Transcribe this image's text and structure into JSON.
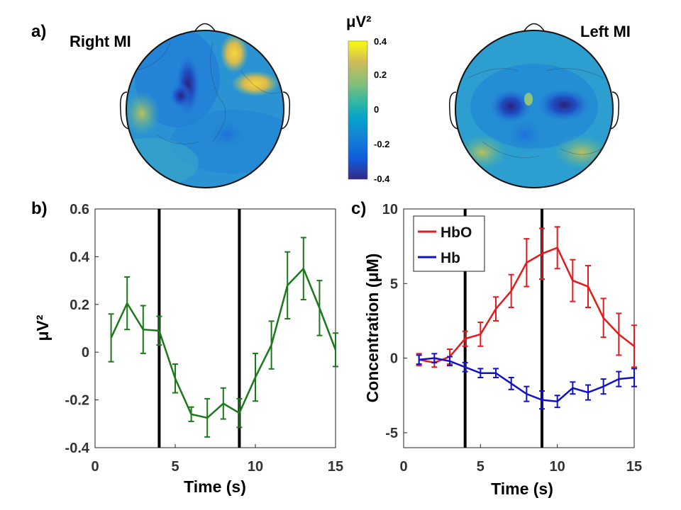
{
  "panel_labels": {
    "a": "a)",
    "b": "b)",
    "c": "c)"
  },
  "topomaps": {
    "right_title": "Right MI",
    "left_title": "Left MI"
  },
  "colorbar": {
    "unit_label": "μV²",
    "ticks": [
      "0.4",
      "0.2",
      "0",
      "-0.2",
      "-0.4"
    ],
    "range": [
      -0.4,
      0.4
    ],
    "colormap": "parula"
  },
  "chart_data": [
    {
      "type": "line",
      "panel": "b",
      "xlabel": "Time (s)",
      "ylabel": "μV²",
      "xlim": [
        0,
        15
      ],
      "ylim": [
        -0.4,
        0.6
      ],
      "xticks": [
        "0",
        "5",
        "10",
        "15"
      ],
      "yticks": [
        "0.6",
        "0.4",
        "0.2",
        "0",
        "-0.2",
        "-0.4"
      ],
      "vlines": [
        4,
        9
      ],
      "series": [
        {
          "color": "#1a7a1a",
          "x": [
            1,
            2,
            3,
            4,
            5,
            6,
            7,
            8,
            9,
            10,
            11,
            12,
            13,
            14,
            15
          ],
          "y": [
            0.06,
            0.205,
            0.095,
            0.09,
            -0.11,
            -0.26,
            -0.275,
            -0.215,
            -0.255,
            -0.105,
            0.03,
            0.28,
            0.35,
            0.185,
            0.01
          ],
          "err": [
            0.1,
            0.11,
            0.1,
            0.06,
            0.06,
            0.03,
            0.08,
            0.065,
            0.06,
            0.1,
            0.1,
            0.14,
            0.13,
            0.115,
            0.07
          ]
        }
      ]
    },
    {
      "type": "line",
      "panel": "c",
      "xlabel": "Time (s)",
      "ylabel": "Concentration (μM)",
      "xlim": [
        0,
        15
      ],
      "ylim": [
        -6,
        10
      ],
      "xticks": [
        "0",
        "5",
        "10",
        "15"
      ],
      "yticks": [
        "10",
        "5",
        "0",
        "-5"
      ],
      "vlines": [
        4,
        9
      ],
      "legend_position": "top-left",
      "series": [
        {
          "name": "HbO",
          "color": "#e41a1c",
          "x": [
            1,
            2,
            3,
            4,
            5,
            6,
            7,
            8,
            9,
            10,
            11,
            12,
            13,
            14,
            15
          ],
          "y": [
            -0.1,
            -0.3,
            0.1,
            1.3,
            1.6,
            3.3,
            4.5,
            6.4,
            7.0,
            7.4,
            5.2,
            4.8,
            2.7,
            1.6,
            0.8
          ],
          "err": [
            0.4,
            0.3,
            0.5,
            0.5,
            0.8,
            0.8,
            1.1,
            1.6,
            1.7,
            1.4,
            1.4,
            1.4,
            1.3,
            1.4,
            1.4
          ]
        },
        {
          "name": "Hb",
          "color": "#1111cc",
          "x": [
            1,
            2,
            3,
            4,
            5,
            6,
            7,
            8,
            9,
            10,
            11,
            12,
            13,
            14,
            15
          ],
          "y": [
            -0.1,
            0.0,
            -0.2,
            -0.6,
            -1.0,
            -1.0,
            -1.7,
            -2.4,
            -2.8,
            -2.9,
            -2.0,
            -2.3,
            -1.9,
            -1.4,
            -1.3
          ],
          "err": [
            0.3,
            0.3,
            0.3,
            0.3,
            0.3,
            0.3,
            0.4,
            0.5,
            0.6,
            0.4,
            0.4,
            0.5,
            0.5,
            0.5,
            0.6
          ]
        }
      ]
    }
  ]
}
